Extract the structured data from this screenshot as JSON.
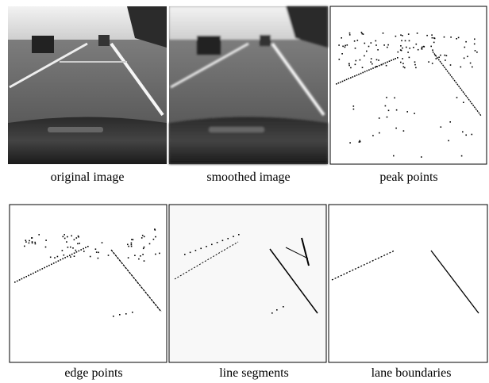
{
  "panels": [
    {
      "caption": "original image"
    },
    {
      "caption": "smoothed image"
    },
    {
      "caption": "peak points"
    },
    {
      "caption": "edge points"
    },
    {
      "caption": "line segments"
    },
    {
      "caption": "lane boundaries"
    }
  ]
}
